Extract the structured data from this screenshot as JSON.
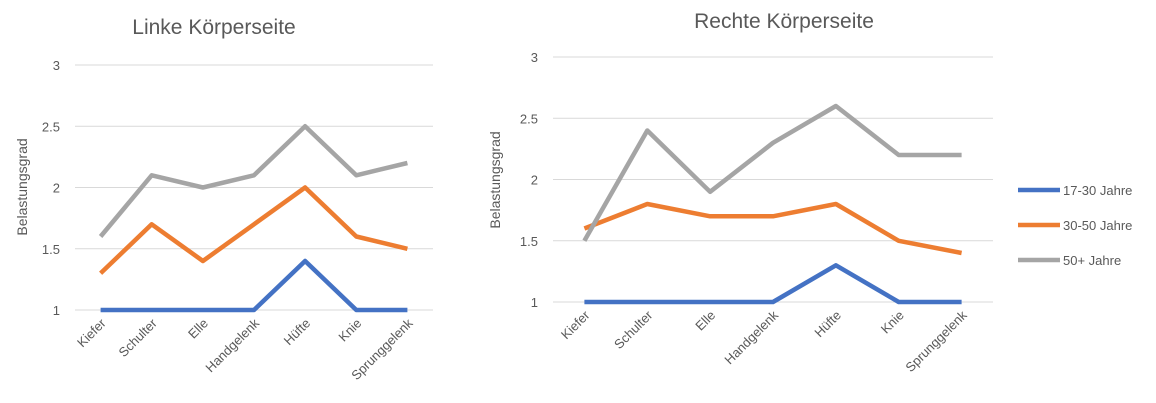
{
  "colors": {
    "17-30 Jahre": "#4472c4",
    "30-50 Jahre": "#ed7d31",
    "50+ Jahre": "#a5a5a5"
  },
  "legend": {
    "placement": "right",
    "items": [
      "17-30 Jahre",
      "30-50 Jahre",
      "50+ Jahre"
    ]
  },
  "chart_data": [
    {
      "type": "line",
      "title": "Linke Körperseite",
      "xlabel": "",
      "ylabel": "Belastungsgrad",
      "ylim": [
        1,
        3
      ],
      "yticks": [
        "1",
        "1.5",
        "2",
        "2.5",
        "3"
      ],
      "grid": true,
      "categories": [
        "Kiefer",
        "Schulter",
        "Elle",
        "Handgelenk",
        "Hüfte",
        "Knie",
        "Sprunggelenk"
      ],
      "series": [
        {
          "name": "17-30 Jahre",
          "values": [
            1.0,
            1.0,
            1.0,
            1.0,
            1.4,
            1.0,
            1.0
          ]
        },
        {
          "name": "30-50 Jahre",
          "values": [
            1.3,
            1.7,
            1.4,
            1.7,
            2.0,
            1.6,
            1.5
          ]
        },
        {
          "name": "50+ Jahre",
          "values": [
            1.6,
            2.1,
            2.0,
            2.1,
            2.5,
            2.1,
            2.2
          ]
        }
      ]
    },
    {
      "type": "line",
      "title": "Rechte Körperseite",
      "xlabel": "",
      "ylabel": "Belastungsgrad",
      "ylim": [
        1,
        3
      ],
      "yticks": [
        "1",
        "1.5",
        "2",
        "2.5",
        "3"
      ],
      "grid": true,
      "categories": [
        "Kiefer",
        "Schulter",
        "Elle",
        "Handgelenk",
        "Hüfte",
        "Knie",
        "Sprunggelenk"
      ],
      "series": [
        {
          "name": "17-30 Jahre",
          "values": [
            1.0,
            1.0,
            1.0,
            1.0,
            1.3,
            1.0,
            1.0
          ]
        },
        {
          "name": "30-50 Jahre",
          "values": [
            1.6,
            1.8,
            1.7,
            1.7,
            1.8,
            1.5,
            1.4
          ]
        },
        {
          "name": "50+ Jahre",
          "values": [
            1.5,
            2.4,
            1.9,
            2.3,
            2.6,
            2.2,
            2.2
          ]
        }
      ]
    }
  ]
}
